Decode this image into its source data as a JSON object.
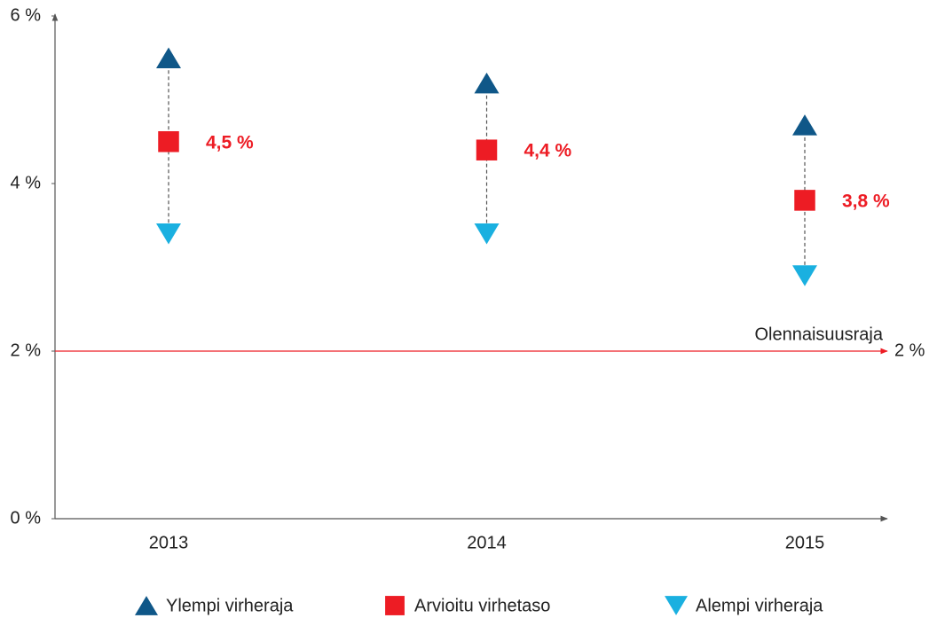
{
  "chart_data": {
    "type": "range",
    "categories": [
      "2013",
      "2014",
      "2015"
    ],
    "series": [
      {
        "name": "Ylempi virheraja",
        "color": "#0f5788",
        "marker": "triangle-up",
        "values": [
          5.5,
          5.2,
          4.7
        ]
      },
      {
        "name": "Arvioitu virhetaso",
        "color": "#ed1c24",
        "marker": "square",
        "values": [
          4.5,
          4.4,
          3.8
        ],
        "value_labels": [
          "4,5 %",
          "4,4 %",
          "3,8 %"
        ]
      },
      {
        "name": "Alempi virheraja",
        "color": "#1ab0e0",
        "marker": "triangle-down",
        "values": [
          3.4,
          3.4,
          2.9
        ]
      }
    ],
    "ylim": [
      0,
      6
    ],
    "yticks": [
      {
        "value": 0,
        "label": "0 %"
      },
      {
        "value": 2,
        "label": "2 %"
      },
      {
        "value": 4,
        "label": "4 %"
      },
      {
        "value": 6,
        "label": "6 %"
      }
    ],
    "threshold": {
      "value": 2,
      "label": "Olennaisuusraja",
      "value_label": "2 %",
      "color": "#ed1c24"
    },
    "legend": "bottom"
  }
}
